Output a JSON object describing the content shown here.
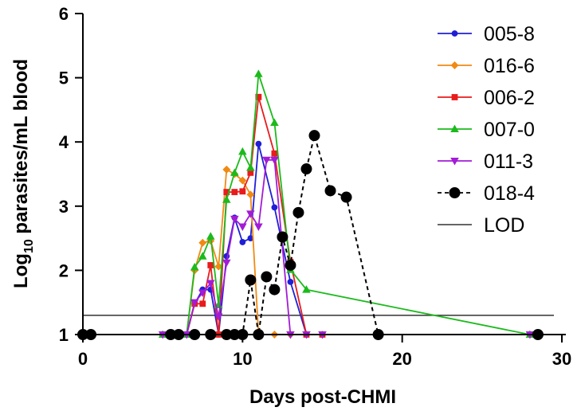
{
  "chart_data": {
    "type": "line",
    "xlabel": "Days post-CHMI",
    "ylabel": {
      "prefix": "Log",
      "subscript": "10",
      "suffix": " parasites/mL blood"
    },
    "xlim": [
      0,
      30
    ],
    "ylim": [
      1,
      6
    ],
    "xticks": [
      "0",
      "10",
      "20",
      "30"
    ],
    "yticks": [
      "1",
      "2",
      "3",
      "4",
      "5",
      "6"
    ],
    "grid": false,
    "legend_position": "top-right",
    "lod": {
      "name": "LOD",
      "value": 1.3,
      "x": [
        0,
        29.5
      ],
      "color": "#333333"
    },
    "series": [
      {
        "name": "005-8",
        "color": "#1f1fd6",
        "marker": "circle",
        "dashed": false,
        "size": "small",
        "points": [
          [
            0,
            1
          ],
          [
            0.5,
            1
          ],
          [
            5,
            1
          ],
          [
            5.5,
            1
          ],
          [
            6,
            1
          ],
          [
            6.5,
            1
          ],
          [
            7,
            1.48
          ],
          [
            7.5,
            1.7
          ],
          [
            8,
            1.7
          ],
          [
            8.5,
            1
          ],
          [
            9,
            2.22
          ],
          [
            9.5,
            2.82
          ],
          [
            10,
            2.44
          ],
          [
            10.5,
            2.5
          ],
          [
            11,
            3.97
          ],
          [
            12,
            2.98
          ],
          [
            13,
            1.82
          ],
          [
            14,
            1
          ],
          [
            15,
            1
          ],
          [
            28,
            1
          ],
          [
            28.5,
            1
          ]
        ]
      },
      {
        "name": "016-6",
        "color": "#f08a14",
        "marker": "diamond",
        "dashed": false,
        "size": "small",
        "points": [
          [
            0,
            1
          ],
          [
            0.5,
            1
          ],
          [
            5,
            1
          ],
          [
            5.5,
            1
          ],
          [
            6,
            1
          ],
          [
            6.5,
            1
          ],
          [
            7,
            2
          ],
          [
            7.5,
            2.43
          ],
          [
            8,
            2.46
          ],
          [
            8.5,
            2.06
          ],
          [
            9,
            3.57
          ],
          [
            9.5,
            3.5
          ],
          [
            10,
            3.4
          ],
          [
            10.5,
            3.18
          ],
          [
            11,
            1
          ],
          [
            12,
            1
          ],
          [
            13,
            1
          ],
          [
            14,
            1
          ],
          [
            15,
            1
          ],
          [
            28,
            1
          ],
          [
            28.5,
            1
          ]
        ]
      },
      {
        "name": "006-2",
        "color": "#e81c1c",
        "marker": "square",
        "dashed": false,
        "size": "small",
        "points": [
          [
            0,
            1
          ],
          [
            0.5,
            1
          ],
          [
            5,
            1
          ],
          [
            5.5,
            1
          ],
          [
            6,
            1
          ],
          [
            6.5,
            1
          ],
          [
            7,
            1.48
          ],
          [
            7.5,
            1.48
          ],
          [
            8,
            2.08
          ],
          [
            8.5,
            1
          ],
          [
            9,
            3.22
          ],
          [
            9.5,
            3.22
          ],
          [
            10,
            3.23
          ],
          [
            10.5,
            3.52
          ],
          [
            11,
            4.7
          ],
          [
            12,
            3.82
          ],
          [
            13,
            2.13
          ],
          [
            14,
            1
          ],
          [
            15,
            1
          ],
          [
            28,
            1
          ],
          [
            28.5,
            1
          ]
        ]
      },
      {
        "name": "007-0",
        "color": "#1cba1c",
        "marker": "triangle-up",
        "dashed": false,
        "size": "small",
        "points": [
          [
            0,
            1
          ],
          [
            0.5,
            1
          ],
          [
            5,
            1
          ],
          [
            5.5,
            1
          ],
          [
            6,
            1
          ],
          [
            6.5,
            1
          ],
          [
            7,
            2.05
          ],
          [
            7.5,
            2.22
          ],
          [
            8,
            2.53
          ],
          [
            8.5,
            1.46
          ],
          [
            9,
            3.1
          ],
          [
            9.5,
            3.52
          ],
          [
            10,
            3.85
          ],
          [
            10.5,
            3.6
          ],
          [
            11,
            5.06
          ],
          [
            12,
            4.3
          ],
          [
            13,
            2.01
          ],
          [
            14,
            1.7
          ],
          [
            28,
            1
          ],
          [
            28.5,
            1
          ]
        ]
      },
      {
        "name": "011-3",
        "color": "#a21cd6",
        "marker": "triangle-down",
        "dashed": false,
        "size": "small",
        "points": [
          [
            0,
            1
          ],
          [
            0.5,
            1
          ],
          [
            5,
            1
          ],
          [
            5.5,
            1
          ],
          [
            6,
            1
          ],
          [
            6.5,
            1
          ],
          [
            7,
            1.5
          ],
          [
            7.5,
            1.65
          ],
          [
            8,
            1.8
          ],
          [
            8.5,
            1.28
          ],
          [
            9,
            2.12
          ],
          [
            9.5,
            2.8
          ],
          [
            10,
            2.68
          ],
          [
            10.5,
            2.88
          ],
          [
            11,
            2.68
          ],
          [
            11.5,
            3.72
          ],
          [
            12,
            3.72
          ],
          [
            13,
            1
          ],
          [
            14,
            1
          ],
          [
            15,
            1
          ],
          [
            28,
            1
          ],
          [
            28.5,
            1
          ]
        ]
      },
      {
        "name": "018-4",
        "color": "#000000",
        "marker": "circle",
        "dashed": true,
        "size": "large",
        "points": [
          [
            0,
            1
          ],
          [
            0.5,
            1
          ],
          [
            5.5,
            1
          ],
          [
            6,
            1
          ],
          [
            7,
            1
          ],
          [
            8,
            1
          ],
          [
            9,
            1
          ],
          [
            9.5,
            1
          ],
          [
            10,
            1
          ],
          [
            10.5,
            1.85
          ],
          [
            11,
            1
          ],
          [
            11.5,
            1.9
          ],
          [
            12,
            1.7
          ],
          [
            12.5,
            2.52
          ],
          [
            13,
            2.08
          ],
          [
            13.5,
            2.9
          ],
          [
            14,
            3.58
          ],
          [
            14.5,
            4.1
          ],
          [
            15.5,
            3.24
          ],
          [
            16.5,
            3.14
          ],
          [
            18.5,
            1
          ],
          [
            28.5,
            1
          ]
        ]
      }
    ]
  }
}
